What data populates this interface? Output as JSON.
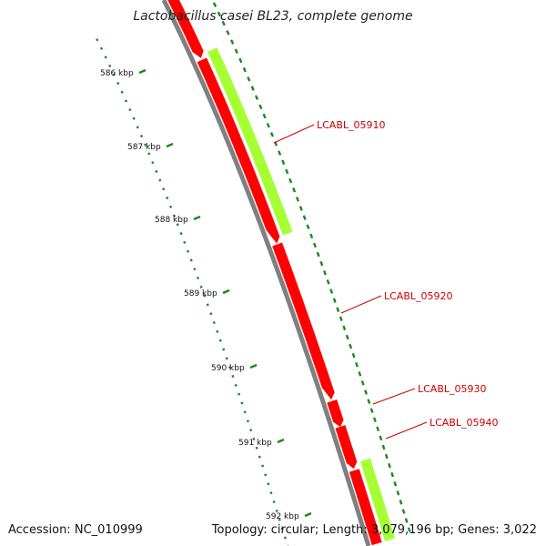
{
  "title": "Lactobacillus casei BL23, complete genome",
  "footer": {
    "accession_label": "Accession:",
    "accession": "NC_010999",
    "topology_label": "Topology:",
    "topology": "circular",
    "length_label": "Length:",
    "length": "3,079,196 bp",
    "genes_label": "Genes:",
    "genes": "3,022"
  },
  "kbp_labels": [
    "586 kbp",
    "587 kbp",
    "588 kbp",
    "589 kbp",
    "590 kbp",
    "591 kbp",
    "592 kbp"
  ],
  "gene_labels": [
    "LCABL_05910",
    "LCABL_05920",
    "LCABL_05930",
    "LCABL_05940"
  ],
  "colors": {
    "forward_gene": "#ff0000",
    "reverse_gene": "#a6ff33",
    "backbone": "#808080",
    "ticks": "#1a8a1a",
    "gene_label": "#cc0000"
  }
}
